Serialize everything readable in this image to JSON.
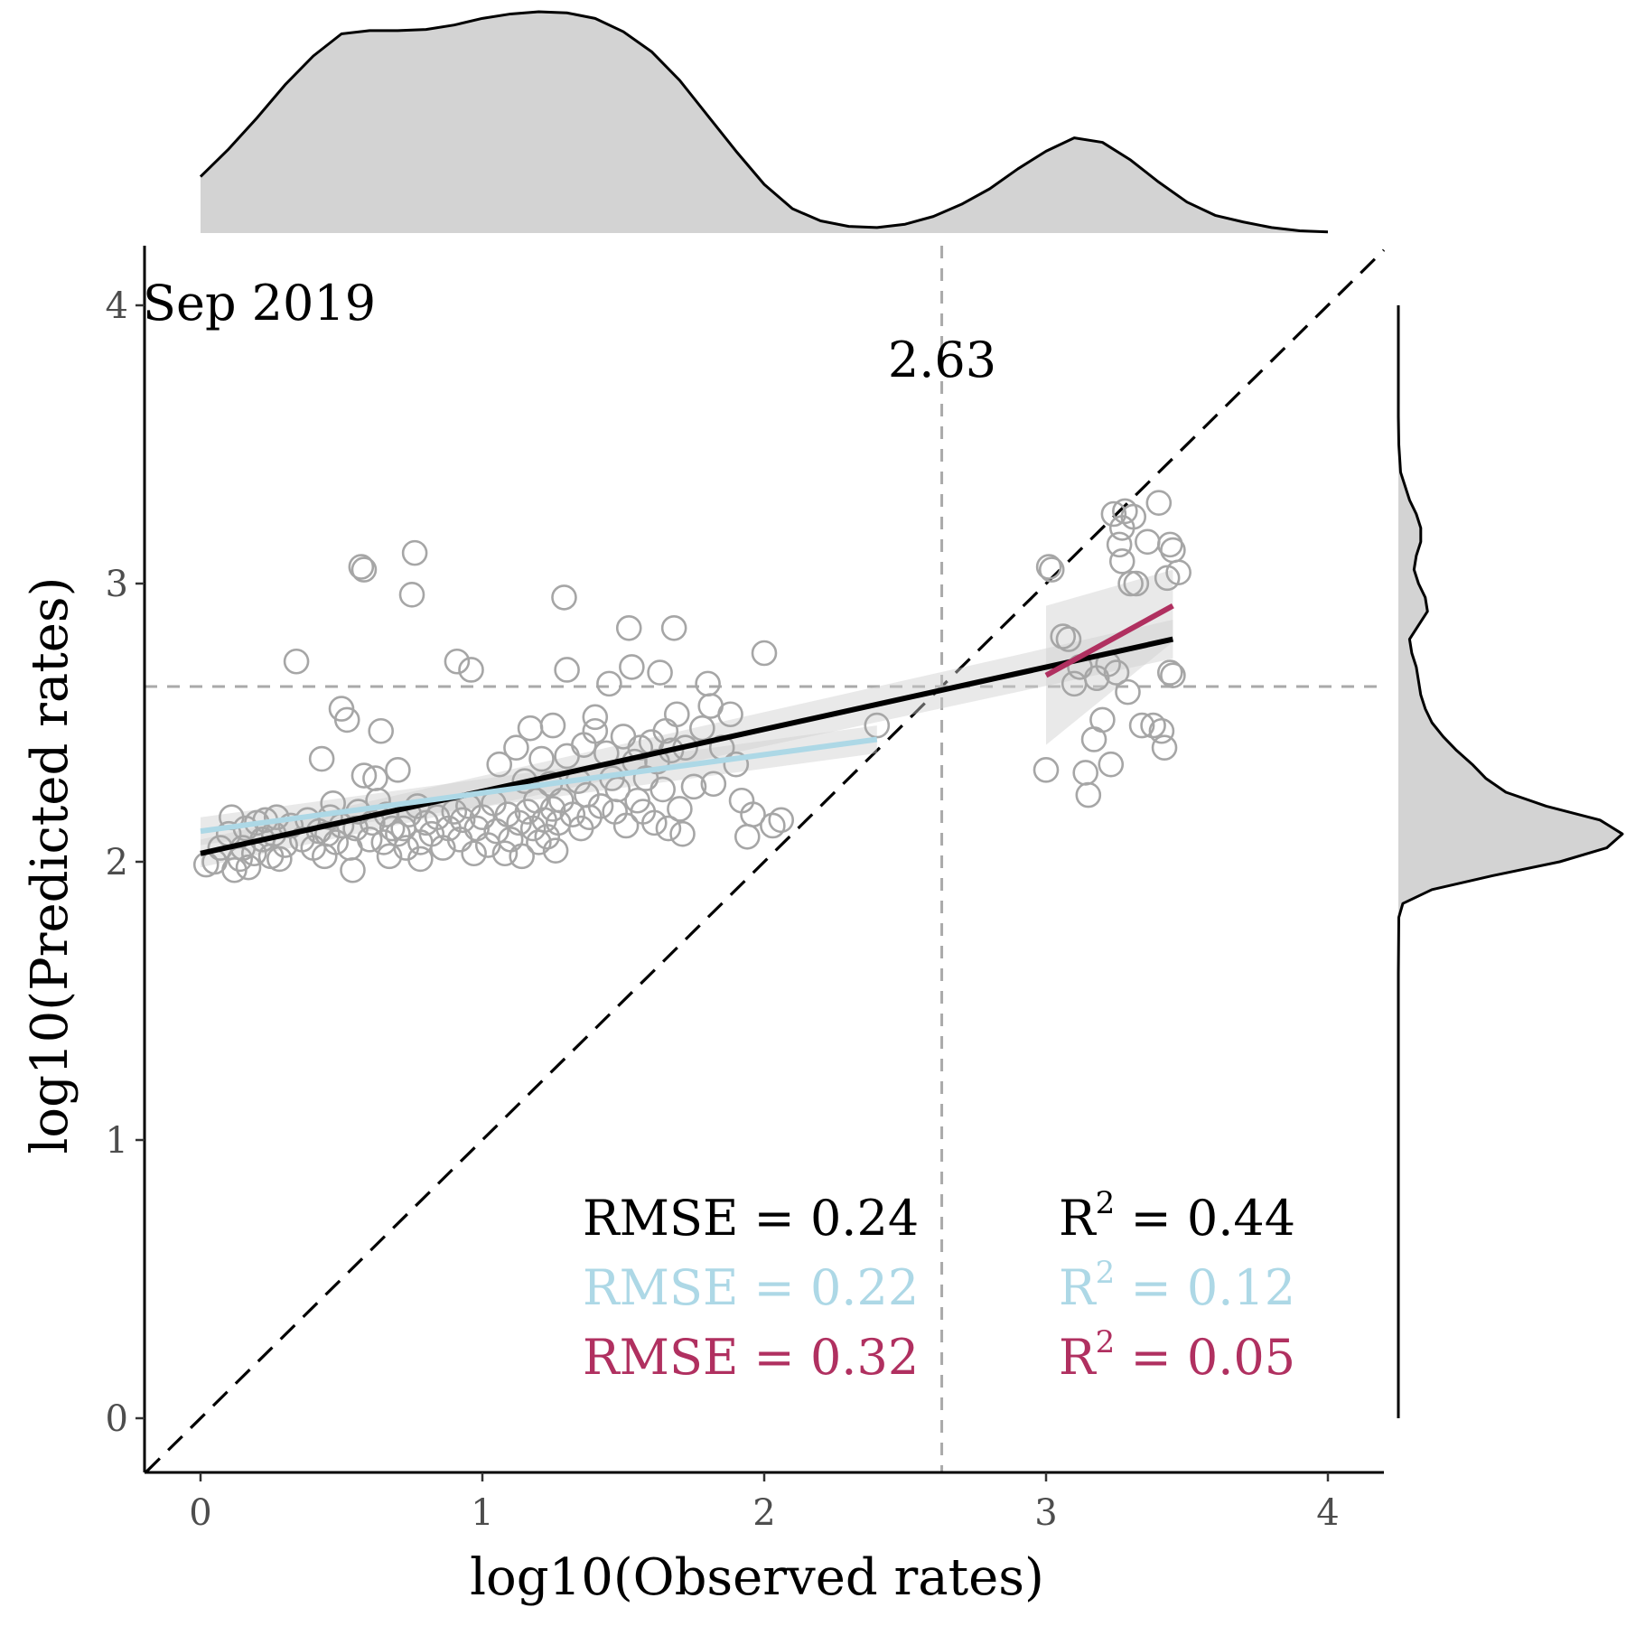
{
  "chart_data": {
    "type": "scatter",
    "panel_label": "Sep 2019",
    "xlabel": "log10(Observed rates)",
    "ylabel": "log10(Predicted rates)",
    "xlim": [
      -0.2,
      4.2
    ],
    "ylim": [
      -0.2,
      4.2
    ],
    "x_ticks": [
      "0",
      "1",
      "2",
      "3",
      "4"
    ],
    "y_ticks": [
      "0",
      "1",
      "2",
      "3",
      "4"
    ],
    "grid": false,
    "threshold": {
      "value": 2.63,
      "label": "2.63"
    },
    "identity_line": true,
    "colors": {
      "points": "#a6a6a6",
      "overall": "#000000",
      "low": "#add8e6",
      "high": "#b03060",
      "density_fill": "#d3d3d3"
    },
    "fits": [
      {
        "x": [
          0,
          3.45
        ],
        "y": [
          2.03,
          2.8
        ],
        "color": "#000000"
      },
      {
        "x": [
          0,
          2.4
        ],
        "y": [
          2.11,
          2.44
        ],
        "color": "#add8e6"
      },
      {
        "x": [
          3.0,
          3.45
        ],
        "y": [
          2.67,
          2.92
        ],
        "color": "#b03060"
      }
    ],
    "stats": [
      {
        "rmse": "RMSE = 0.24",
        "r2_base": "R",
        "r2_sup": "2",
        "r2_value": " = 0.44",
        "color": "#000000"
      },
      {
        "rmse": "RMSE = 0.22",
        "r2_base": "R",
        "r2_sup": "2",
        "r2_value": " = 0.12",
        "color": "#add8e6"
      },
      {
        "rmse": "RMSE = 0.32",
        "r2_base": "R",
        "r2_sup": "2",
        "r2_value": " = 0.05",
        "color": "#b03060"
      }
    ],
    "points": [
      [
        0.02,
        1.99
      ],
      [
        0.05,
        2.0
      ],
      [
        0.07,
        2.05
      ],
      [
        0.1,
        2.1
      ],
      [
        0.11,
        2.16
      ],
      [
        0.12,
        1.97
      ],
      [
        0.14,
        2.01
      ],
      [
        0.15,
        2.05
      ],
      [
        0.16,
        2.12
      ],
      [
        0.17,
        1.98
      ],
      [
        0.19,
        2.03
      ],
      [
        0.2,
        2.14
      ],
      [
        0.22,
        2.08
      ],
      [
        0.23,
        2.15
      ],
      [
        0.25,
        2.02
      ],
      [
        0.26,
        2.1
      ],
      [
        0.27,
        2.16
      ],
      [
        0.28,
        2.01
      ],
      [
        0.3,
        2.06
      ],
      [
        0.32,
        2.13
      ],
      [
        0.34,
        2.72
      ],
      [
        0.36,
        2.08
      ],
      [
        0.38,
        2.15
      ],
      [
        0.4,
        2.05
      ],
      [
        0.42,
        2.11
      ],
      [
        0.43,
        2.37
      ],
      [
        0.44,
        2.02
      ],
      [
        0.45,
        2.1
      ],
      [
        0.46,
        2.16
      ],
      [
        0.47,
        2.21
      ],
      [
        0.48,
        2.07
      ],
      [
        0.5,
        2.13
      ],
      [
        0.5,
        2.55
      ],
      [
        0.52,
        2.51
      ],
      [
        0.53,
        2.05
      ],
      [
        0.54,
        1.97
      ],
      [
        0.55,
        2.12
      ],
      [
        0.56,
        2.18
      ],
      [
        0.57,
        3.06
      ],
      [
        0.58,
        3.05
      ],
      [
        0.58,
        2.31
      ],
      [
        0.6,
        2.08
      ],
      [
        0.61,
        2.14
      ],
      [
        0.62,
        2.3
      ],
      [
        0.63,
        2.22
      ],
      [
        0.64,
        2.47
      ],
      [
        0.65,
        2.07
      ],
      [
        0.66,
        2.17
      ],
      [
        0.67,
        2.02
      ],
      [
        0.68,
        2.12
      ],
      [
        0.7,
        2.1
      ],
      [
        0.7,
        2.33
      ],
      [
        0.72,
        2.12
      ],
      [
        0.73,
        2.05
      ],
      [
        0.74,
        2.17
      ],
      [
        0.75,
        2.96
      ],
      [
        0.76,
        3.11
      ],
      [
        0.77,
        2.2
      ],
      [
        0.78,
        2.07
      ],
      [
        0.78,
        2.01
      ],
      [
        0.8,
        2.14
      ],
      [
        0.82,
        2.1
      ],
      [
        0.84,
        2.16
      ],
      [
        0.86,
        2.05
      ],
      [
        0.88,
        2.12
      ],
      [
        0.9,
        2.18
      ],
      [
        0.91,
        2.72
      ],
      [
        0.92,
        2.08
      ],
      [
        0.93,
        2.15
      ],
      [
        0.95,
        2.2
      ],
      [
        0.96,
        2.69
      ],
      [
        0.97,
        2.03
      ],
      [
        0.98,
        2.12
      ],
      [
        1.0,
        2.16
      ],
      [
        1.02,
        2.06
      ],
      [
        1.04,
        2.21
      ],
      [
        1.05,
        2.11
      ],
      [
        1.06,
        2.35
      ],
      [
        1.08,
        2.03
      ],
      [
        1.09,
        2.17
      ],
      [
        1.1,
        2.08
      ],
      [
        1.12,
        2.41
      ],
      [
        1.13,
        2.14
      ],
      [
        1.14,
        2.02
      ],
      [
        1.15,
        2.29
      ],
      [
        1.16,
        2.18
      ],
      [
        1.17,
        2.48
      ],
      [
        1.18,
        2.12
      ],
      [
        1.19,
        2.22
      ],
      [
        1.2,
        2.07
      ],
      [
        1.21,
        2.37
      ],
      [
        1.22,
        2.15
      ],
      [
        1.23,
        2.09
      ],
      [
        1.24,
        2.28
      ],
      [
        1.25,
        2.19
      ],
      [
        1.25,
        2.49
      ],
      [
        1.26,
        2.04
      ],
      [
        1.27,
        2.14
      ],
      [
        1.28,
        2.22
      ],
      [
        1.29,
        2.95
      ],
      [
        1.3,
        2.38
      ],
      [
        1.3,
        2.69
      ],
      [
        1.32,
        2.17
      ],
      [
        1.34,
        2.29
      ],
      [
        1.35,
        2.12
      ],
      [
        1.36,
        2.42
      ],
      [
        1.37,
        2.24
      ],
      [
        1.38,
        2.16
      ],
      [
        1.4,
        2.47
      ],
      [
        1.4,
        2.52
      ],
      [
        1.42,
        2.2
      ],
      [
        1.44,
        2.39
      ],
      [
        1.45,
        2.64
      ],
      [
        1.46,
        2.3
      ],
      [
        1.47,
        2.18
      ],
      [
        1.48,
        2.26
      ],
      [
        1.5,
        2.45
      ],
      [
        1.51,
        2.13
      ],
      [
        1.52,
        2.84
      ],
      [
        1.53,
        2.7
      ],
      [
        1.54,
        2.36
      ],
      [
        1.55,
        2.22
      ],
      [
        1.56,
        2.41
      ],
      [
        1.57,
        2.18
      ],
      [
        1.58,
        2.3
      ],
      [
        1.6,
        2.43
      ],
      [
        1.61,
        2.14
      ],
      [
        1.62,
        2.36
      ],
      [
        1.63,
        2.68
      ],
      [
        1.64,
        2.26
      ],
      [
        1.65,
        2.47
      ],
      [
        1.66,
        2.12
      ],
      [
        1.67,
        2.4
      ],
      [
        1.68,
        2.84
      ],
      [
        1.69,
        2.53
      ],
      [
        1.7,
        2.19
      ],
      [
        1.71,
        2.1
      ],
      [
        1.72,
        2.41
      ],
      [
        1.75,
        2.27
      ],
      [
        1.78,
        2.48
      ],
      [
        1.8,
        2.64
      ],
      [
        1.81,
        2.56
      ],
      [
        1.82,
        2.28
      ],
      [
        1.85,
        2.41
      ],
      [
        1.88,
        2.53
      ],
      [
        1.9,
        2.35
      ],
      [
        1.92,
        2.22
      ],
      [
        1.94,
        2.09
      ],
      [
        1.96,
        2.17
      ],
      [
        2.0,
        2.75
      ],
      [
        2.03,
        2.13
      ],
      [
        2.06,
        2.15
      ],
      [
        2.4,
        2.49
      ],
      [
        3.0,
        2.33
      ],
      [
        3.01,
        3.06
      ],
      [
        3.02,
        3.05
      ],
      [
        3.06,
        2.81
      ],
      [
        3.08,
        2.8
      ],
      [
        3.1,
        2.64
      ],
      [
        3.12,
        2.7
      ],
      [
        3.14,
        2.32
      ],
      [
        3.15,
        2.24
      ],
      [
        3.17,
        2.44
      ],
      [
        3.18,
        2.66
      ],
      [
        3.2,
        2.51
      ],
      [
        3.22,
        2.71
      ],
      [
        3.23,
        2.35
      ],
      [
        3.24,
        3.25
      ],
      [
        3.25,
        2.68
      ],
      [
        3.26,
        3.14
      ],
      [
        3.27,
        3.2
      ],
      [
        3.27,
        3.08
      ],
      [
        3.28,
        3.26
      ],
      [
        3.29,
        2.61
      ],
      [
        3.3,
        3.0
      ],
      [
        3.31,
        3.24
      ],
      [
        3.32,
        3.0
      ],
      [
        3.34,
        2.49
      ],
      [
        3.36,
        3.15
      ],
      [
        3.38,
        2.49
      ],
      [
        3.4,
        3.29
      ],
      [
        3.41,
        2.47
      ],
      [
        3.42,
        2.41
      ],
      [
        3.43,
        3.02
      ],
      [
        3.44,
        3.14
      ],
      [
        3.44,
        2.68
      ],
      [
        3.45,
        3.12
      ],
      [
        3.45,
        2.67
      ],
      [
        3.47,
        3.04
      ]
    ],
    "x_density": {
      "x": [
        0,
        0.1,
        0.2,
        0.3,
        0.4,
        0.5,
        0.6,
        0.7,
        0.8,
        0.9,
        1.0,
        1.1,
        1.2,
        1.3,
        1.4,
        1.5,
        1.6,
        1.7,
        1.8,
        1.9,
        2.0,
        2.1,
        2.2,
        2.3,
        2.4,
        2.5,
        2.6,
        2.7,
        2.8,
        2.9,
        3.0,
        3.1,
        3.2,
        3.3,
        3.4,
        3.5,
        3.6,
        3.7,
        3.8,
        3.9,
        4.0
      ],
      "y": [
        0.255,
        0.38,
        0.52,
        0.67,
        0.8,
        0.9,
        0.915,
        0.915,
        0.92,
        0.94,
        0.97,
        0.99,
        1.0,
        0.995,
        0.97,
        0.91,
        0.82,
        0.69,
        0.53,
        0.37,
        0.22,
        0.11,
        0.055,
        0.03,
        0.025,
        0.04,
        0.075,
        0.13,
        0.2,
        0.29,
        0.37,
        0.43,
        0.41,
        0.33,
        0.23,
        0.14,
        0.08,
        0.05,
        0.025,
        0.01,
        0.005
      ]
    },
    "y_density": {
      "y": [
        0,
        0.2,
        0.4,
        0.6,
        0.8,
        1.0,
        1.2,
        1.4,
        1.6,
        1.8,
        1.85,
        1.9,
        1.95,
        2.0,
        2.05,
        2.1,
        2.15,
        2.2,
        2.25,
        2.3,
        2.35,
        2.4,
        2.45,
        2.5,
        2.55,
        2.6,
        2.65,
        2.7,
        2.75,
        2.8,
        2.85,
        2.9,
        2.95,
        3.0,
        3.05,
        3.1,
        3.15,
        3.2,
        3.25,
        3.3,
        3.35,
        3.4,
        3.5,
        3.6,
        3.8,
        4.0
      ],
      "d": [
        0,
        0,
        0,
        0,
        0,
        0,
        0,
        0,
        0,
        0.002,
        0.02,
        0.15,
        0.42,
        0.72,
        0.93,
        1.0,
        0.9,
        0.66,
        0.48,
        0.39,
        0.33,
        0.26,
        0.2,
        0.15,
        0.12,
        0.1,
        0.09,
        0.08,
        0.06,
        0.05,
        0.09,
        0.13,
        0.12,
        0.09,
        0.07,
        0.08,
        0.1,
        0.1,
        0.08,
        0.05,
        0.03,
        0.01,
        0.002,
        0,
        0,
        0
      ]
    }
  }
}
